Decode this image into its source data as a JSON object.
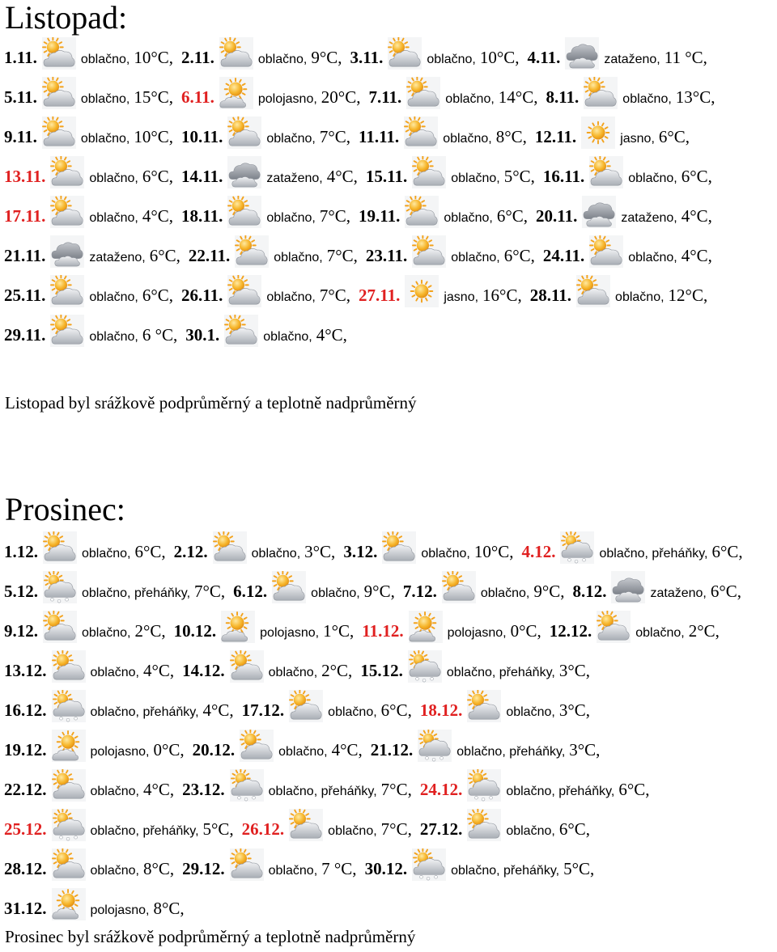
{
  "months": [
    {
      "title": "Listopad:",
      "summary": "Listopad byl srážkově podprůměrný a teplotně nadprůměrný",
      "entries": [
        {
          "date": "1.11.",
          "icon": "partly-cloudy-icon",
          "desc": "oblačno,",
          "temp": "10°C,"
        },
        {
          "date": "2.11.",
          "icon": "partly-cloudy-icon",
          "desc": "oblačno,",
          "temp": "9°C,"
        },
        {
          "date": "3.11.",
          "icon": "partly-cloudy-icon",
          "desc": "oblačno,",
          "temp": "10°C,"
        },
        {
          "date": "4.11.",
          "icon": "overcast-icon",
          "desc": "zataženo,",
          "temp": "11 °C,"
        },
        {
          "date": "5.11.",
          "icon": "partly-cloudy-icon",
          "desc": "oblačno,",
          "temp": "15°C,"
        },
        {
          "date": "6.11.",
          "red": true,
          "icon": "mostly-sunny-icon",
          "desc": "polojasno,",
          "temp": "20°C,"
        },
        {
          "date": "7.11.",
          "icon": "partly-cloudy-icon",
          "desc": "oblačno,",
          "temp": "14°C,"
        },
        {
          "date": "8.11.",
          "icon": "partly-cloudy-icon",
          "desc": "oblačno,",
          "temp": "13°C,"
        },
        {
          "date": "9.11.",
          "icon": "partly-cloudy-icon",
          "desc": "oblačno,",
          "temp": "10°C,"
        },
        {
          "date": "10.11.",
          "icon": "partly-cloudy-icon",
          "desc": "oblačno,",
          "temp": "7°C,"
        },
        {
          "date": "11.11.",
          "icon": "partly-cloudy-icon",
          "desc": "oblačno,",
          "temp": "8°C,"
        },
        {
          "date": "12.11.",
          "icon": "sunny-icon",
          "desc": "jasno,",
          "temp": "6°C,"
        },
        {
          "date": "13.11.",
          "red": true,
          "icon": "partly-cloudy-icon",
          "desc": "oblačno,",
          "temp": "6°C,"
        },
        {
          "date": "14.11.",
          "icon": "overcast-icon",
          "desc": "zataženo,",
          "temp": "4°C,"
        },
        {
          "date": "15.11.",
          "icon": "partly-cloudy-icon",
          "desc": "oblačno,",
          "temp": "5°C,"
        },
        {
          "date": "16.11.",
          "icon": "partly-cloudy-icon",
          "desc": "oblačno,",
          "temp": "6°C,"
        },
        {
          "date": "17.11.",
          "red": true,
          "icon": "partly-cloudy-icon",
          "desc": "oblačno,",
          "temp": "4°C,"
        },
        {
          "date": "18.11.",
          "icon": "partly-cloudy-icon",
          "desc": "oblačno,",
          "temp": "7°C,"
        },
        {
          "date": "19.11.",
          "icon": "partly-cloudy-icon",
          "desc": "oblačno,",
          "temp": "6°C,"
        },
        {
          "date": "20.11.",
          "icon": "overcast-icon",
          "desc": "zataženo,",
          "temp": "4°C,"
        },
        {
          "date": "21.11.",
          "icon": "overcast-icon",
          "desc": "zataženo,",
          "temp": "6°C,"
        },
        {
          "date": "22.11.",
          "icon": "partly-cloudy-icon",
          "desc": "oblačno,",
          "temp": "7°C,"
        },
        {
          "date": "23.11.",
          "icon": "partly-cloudy-icon",
          "desc": "oblačno,",
          "temp": "6°C,"
        },
        {
          "date": "24.11.",
          "icon": "partly-cloudy-icon",
          "desc": "oblačno,",
          "temp": "4°C,"
        },
        {
          "date": "25.11.",
          "icon": "partly-cloudy-icon",
          "desc": "oblačno,",
          "temp": "6°C,"
        },
        {
          "date": "26.11.",
          "icon": "partly-cloudy-icon",
          "desc": "oblačno,",
          "temp": "7°C,"
        },
        {
          "date": "27.11.",
          "red": true,
          "icon": "sunny-icon",
          "desc": "jasno,",
          "temp": "16°C,"
        },
        {
          "date": "28.11.",
          "icon": "partly-cloudy-icon",
          "desc": "oblačno,",
          "temp": "12°C,"
        },
        {
          "date": "29.11.",
          "icon": "partly-cloudy-icon",
          "desc": "oblačno,",
          "temp": "6 °C,"
        },
        {
          "date": "30.1.",
          "icon": "partly-cloudy-icon",
          "desc": "oblačno,",
          "temp": "4°C,"
        }
      ]
    },
    {
      "title": "Prosinec:",
      "summary": "Prosinec byl srážkově podprůměrný a teplotně nadprůměrný",
      "entries": [
        {
          "date": "1.12.",
          "icon": "partly-cloudy-icon",
          "desc": "oblačno,",
          "temp": "6°C,"
        },
        {
          "date": "2.12.",
          "icon": "partly-cloudy-icon",
          "desc": "oblačno,",
          "temp": "3°C,"
        },
        {
          "date": "3.12.",
          "icon": "partly-cloudy-icon",
          "desc": "oblačno,",
          "temp": "10°C,"
        },
        {
          "date": "4.12.",
          "red": true,
          "icon": "showers-icon",
          "desc": "oblačno, přeháňky,",
          "temp": "6°C,"
        },
        {
          "date": "5.12.",
          "icon": "showers-icon",
          "desc": "oblačno, přeháňky,",
          "temp": "7°C,"
        },
        {
          "date": "6.12.",
          "icon": "partly-cloudy-icon",
          "desc": "oblačno,",
          "temp": "9°C,"
        },
        {
          "date": "7.12.",
          "icon": "partly-cloudy-icon",
          "desc": "oblačno,",
          "temp": "9°C,"
        },
        {
          "date": "8.12.",
          "icon": "overcast-icon",
          "desc": "zataženo,",
          "temp": "6°C,"
        },
        {
          "date": "9.12.",
          "icon": "partly-cloudy-icon",
          "desc": "oblačno,",
          "temp": "2°C,"
        },
        {
          "date": "10.12.",
          "icon": "mostly-sunny-icon",
          "desc": "polojasno,",
          "temp": "1°C,"
        },
        {
          "date": "11.12.",
          "red": true,
          "icon": "mostly-sunny-icon",
          "desc": "polojasno,",
          "temp": "0°C,"
        },
        {
          "date": "12.12.",
          "icon": "partly-cloudy-icon",
          "desc": "oblačno,",
          "temp": "2°C,"
        },
        {
          "date": "13.12.",
          "icon": "partly-cloudy-icon",
          "desc": "oblačno,",
          "temp": "4°C,"
        },
        {
          "date": "14.12.",
          "icon": "partly-cloudy-icon",
          "desc": "oblačno,",
          "temp": "2°C,"
        },
        {
          "date": "15.12.",
          "icon": "showers-icon",
          "desc": "oblačno, přeháňky,",
          "temp": "3°C,"
        },
        {
          "date": "16.12.",
          "icon": "showers-icon",
          "desc": "oblačno, přeháňky,",
          "temp": "4°C,"
        },
        {
          "date": "17.12.",
          "icon": "partly-cloudy-icon",
          "desc": "oblačno,",
          "temp": "6°C,"
        },
        {
          "date": "18.12.",
          "red": true,
          "icon": "partly-cloudy-icon",
          "desc": "oblačno,",
          "temp": "3°C,"
        },
        {
          "date": "19.12.",
          "icon": "mostly-sunny-icon",
          "desc": "polojasno,",
          "temp": "0°C,"
        },
        {
          "date": "20.12.",
          "icon": "partly-cloudy-icon",
          "desc": "oblačno,",
          "temp": "4°C,"
        },
        {
          "date": "21.12.",
          "icon": "showers-icon",
          "desc": "oblačno, přeháňky,",
          "temp": "3°C,"
        },
        {
          "date": "22.12.",
          "icon": "partly-cloudy-icon",
          "desc": "oblačno,",
          "temp": "4°C,"
        },
        {
          "date": "23.12.",
          "icon": "showers-icon",
          "desc": "oblačno, přeháňky,",
          "temp": "7°C,"
        },
        {
          "date": "24.12.",
          "red": true,
          "icon": "showers-icon",
          "desc": "oblačno, přeháňky,",
          "temp": "6°C,"
        },
        {
          "date": "25.12.",
          "red": true,
          "icon": "showers-icon",
          "desc": "oblačno, přeháňky,",
          "temp": "5°C,"
        },
        {
          "date": "26.12.",
          "red": true,
          "icon": "partly-cloudy-icon",
          "desc": "oblačno,",
          "temp": "7°C,"
        },
        {
          "date": "27.12.",
          "icon": "partly-cloudy-icon",
          "desc": "oblačno,",
          "temp": "6°C,"
        },
        {
          "date": "28.12.",
          "icon": "partly-cloudy-icon",
          "desc": "oblačno,",
          "temp": "8°C,"
        },
        {
          "date": "29.12.",
          "icon": "partly-cloudy-icon",
          "desc": "oblačno,",
          "temp": "7 °C,"
        },
        {
          "date": "30.12.",
          "icon": "showers-icon",
          "desc": "oblačno, přeháňky,",
          "temp": "5°C,"
        },
        {
          "date": "31.12.",
          "icon": "mostly-sunny-icon",
          "desc": "polojasno,",
          "temp": "8°C,"
        }
      ]
    }
  ],
  "colors": {
    "text": "#000000",
    "highlight_date": "#e02020",
    "sun": "#f3a21b",
    "cloud": "#cfd3d8"
  }
}
